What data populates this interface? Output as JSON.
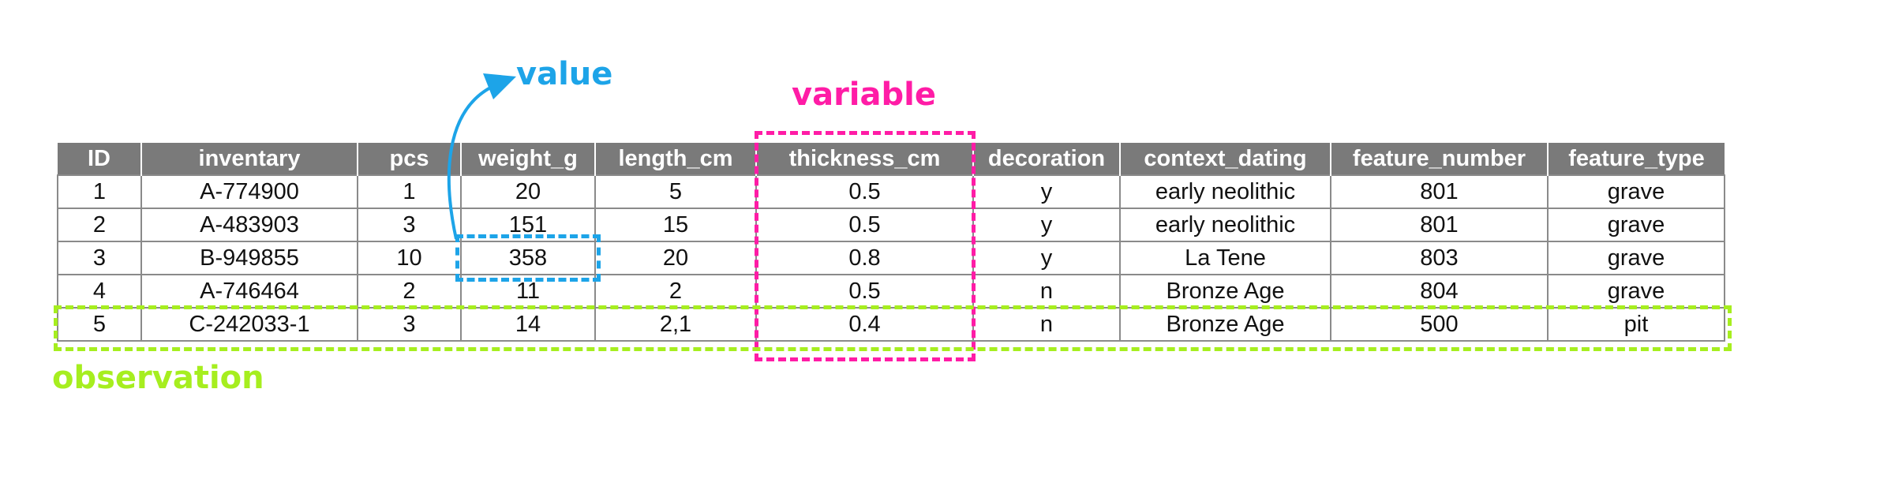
{
  "annotations": {
    "value": "value",
    "variable": "variable",
    "observation": "observation"
  },
  "table": {
    "columns": [
      "ID",
      "inventary",
      "pcs",
      "weight_g",
      "length_cm",
      "thickness_cm",
      "decoration",
      "context_dating",
      "feature_number",
      "feature_type"
    ],
    "rows": [
      [
        "1",
        "A-774900",
        "1",
        "20",
        "5",
        "0.5",
        "y",
        "early neolithic",
        "801",
        "grave"
      ],
      [
        "2",
        "A-483903",
        "3",
        "151",
        "15",
        "0.5",
        "y",
        "early neolithic",
        "801",
        "grave"
      ],
      [
        "3",
        "B-949855",
        "10",
        "358",
        "20",
        "0.8",
        "y",
        "La Tene",
        "803",
        "grave"
      ],
      [
        "4",
        "A-746464",
        "2",
        "11",
        "2",
        "0.5",
        "n",
        "Bronze Age",
        "804",
        "grave"
      ],
      [
        "5",
        "C-242033-1",
        "3",
        "14",
        "2,1",
        "0.4",
        "n",
        "Bronze Age",
        "500",
        "pit"
      ]
    ]
  },
  "colors": {
    "value": "#1da4e8",
    "variable": "#ff1ca6",
    "observation": "#a6ee1f",
    "header_bg": "#7a7a7a"
  }
}
